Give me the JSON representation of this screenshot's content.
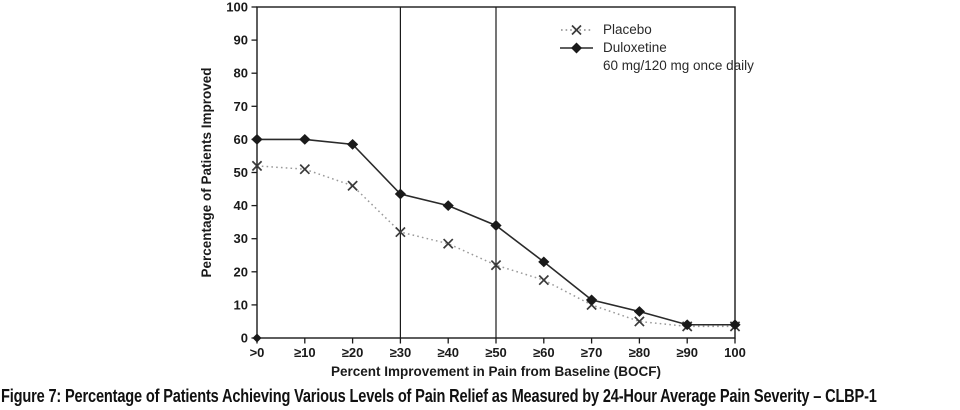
{
  "figure": {
    "caption": "Figure 7: Percentage of Patients Achieving Various Levels of Pain Relief as Measured by 24-Hour Average Pain Severity – CLBP-1"
  },
  "legend": {
    "placebo_label": "Placebo",
    "duloxetine_label": "Duloxetine",
    "duloxetine_sublabel": "60 mg/120 mg once daily"
  },
  "chart_data": {
    "type": "line",
    "title": "",
    "xlabel": "Percent Improvement in Pain from Baseline (BOCF)",
    "ylabel": "Percentage of Patients Improved",
    "x_categories": [
      ">0",
      "≥10",
      "≥20",
      "≥30",
      "≥40",
      "≥50",
      "≥60",
      "≥70",
      "≥80",
      "≥90",
      "100"
    ],
    "y_ticks": [
      0,
      10,
      20,
      30,
      40,
      50,
      60,
      70,
      80,
      90,
      100
    ],
    "ylim": [
      0,
      100
    ],
    "grid": false,
    "legend_position": "top-right",
    "reference_lines_at_categories": [
      "≥30",
      "≥50"
    ],
    "plot_border": true,
    "origin_marker": "diamond",
    "series": [
      {
        "name": "Placebo",
        "line_style": "dotted",
        "marker": "x",
        "line_color": "#9a9a9a",
        "marker_color": "#3a3a3a",
        "values": [
          52,
          51,
          46,
          32,
          28.5,
          22,
          17.5,
          10,
          5,
          3.5,
          3.5
        ]
      },
      {
        "name": "Duloxetine 60 mg/120 mg once daily",
        "line_style": "solid",
        "marker": "diamond",
        "line_color": "#2a2a2a",
        "marker_color": "#1a1a1a",
        "values": [
          60,
          60,
          58.5,
          43.5,
          40,
          34,
          23,
          11.5,
          8,
          4,
          4
        ]
      }
    ],
    "colors": {
      "axis": "#1a1a1a",
      "text": "#1a1a1a",
      "background": "#ffffff"
    }
  }
}
